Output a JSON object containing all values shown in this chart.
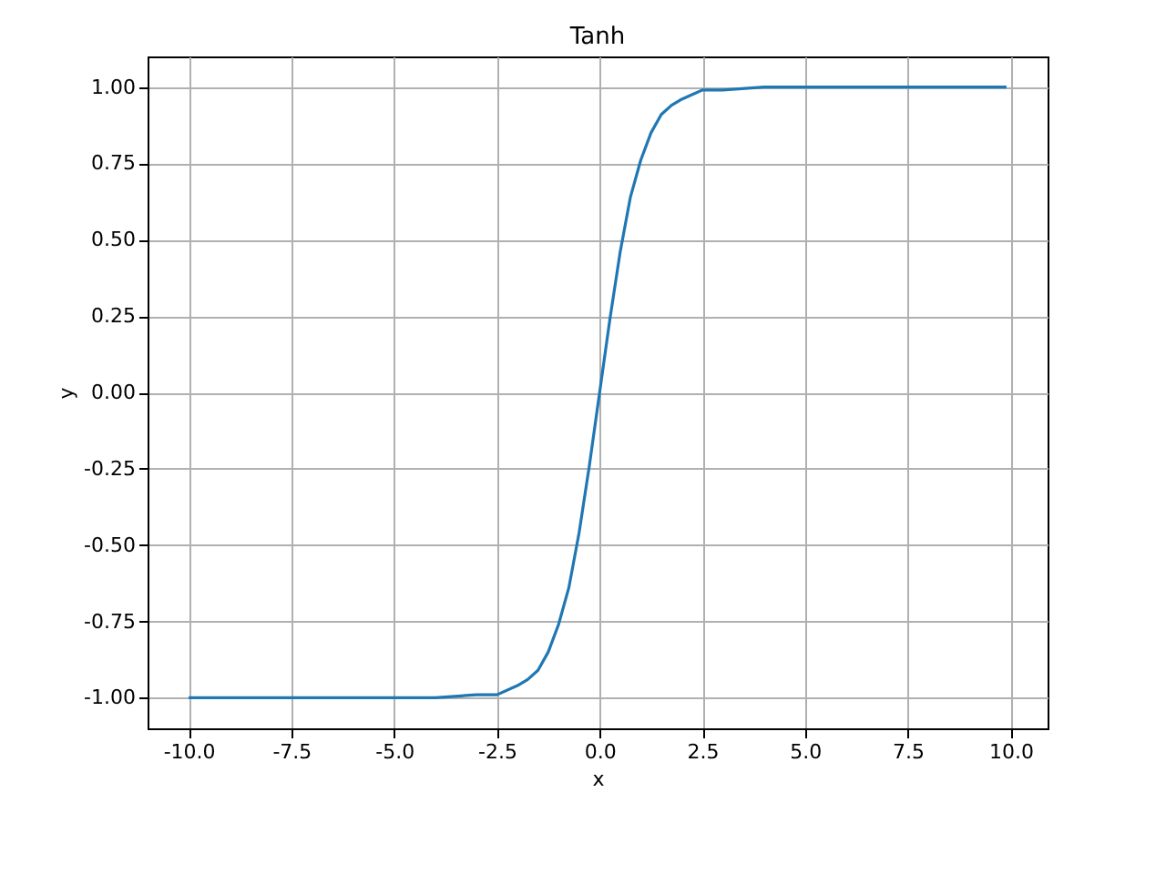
{
  "chart_data": {
    "type": "line",
    "title": "Tanh",
    "xlabel": "x",
    "ylabel": "y",
    "x": [
      -10,
      -5,
      -4,
      -3,
      -2.5,
      -2,
      -1.75,
      -1.5,
      -1.25,
      -1,
      -0.75,
      -0.5,
      -0.25,
      0,
      0.25,
      0.5,
      0.75,
      1,
      1.25,
      1.5,
      1.75,
      2,
      2.5,
      3,
      4,
      5,
      9.9
    ],
    "series": [
      {
        "color": "#1f77b4",
        "values": [
          -1.0,
          -1.0,
          -1.0,
          -0.99,
          -0.99,
          -0.96,
          -0.94,
          -0.91,
          -0.85,
          -0.76,
          -0.64,
          -0.46,
          -0.24,
          0.0,
          0.24,
          0.46,
          0.64,
          0.76,
          0.85,
          0.91,
          0.94,
          0.96,
          0.99,
          0.99,
          1.0,
          1.0,
          1.0
        ]
      }
    ],
    "xlim": [
      -11,
      10.9
    ],
    "ylim": [
      -1.1,
      1.1
    ],
    "xticks": [
      {
        "value": -10,
        "label": "-10.0"
      },
      {
        "value": -7.5,
        "label": "-7.5"
      },
      {
        "value": -5,
        "label": "-5.0"
      },
      {
        "value": -2.5,
        "label": "-2.5"
      },
      {
        "value": 0,
        "label": "0.0"
      },
      {
        "value": 2.5,
        "label": "2.5"
      },
      {
        "value": 5,
        "label": "5.0"
      },
      {
        "value": 7.5,
        "label": "7.5"
      },
      {
        "value": 10,
        "label": "10.0"
      }
    ],
    "yticks": [
      {
        "value": -1,
        "label": "-1.00"
      },
      {
        "value": -0.75,
        "label": "-0.75"
      },
      {
        "value": -0.5,
        "label": "-0.50"
      },
      {
        "value": -0.25,
        "label": "-0.25"
      },
      {
        "value": 0,
        "label": "0.00"
      },
      {
        "value": 0.25,
        "label": "0.25"
      },
      {
        "value": 0.5,
        "label": "0.50"
      },
      {
        "value": 0.75,
        "label": "0.75"
      },
      {
        "value": 1,
        "label": "1.00"
      }
    ],
    "grid": true,
    "marker": "none",
    "line_style": "solid"
  }
}
